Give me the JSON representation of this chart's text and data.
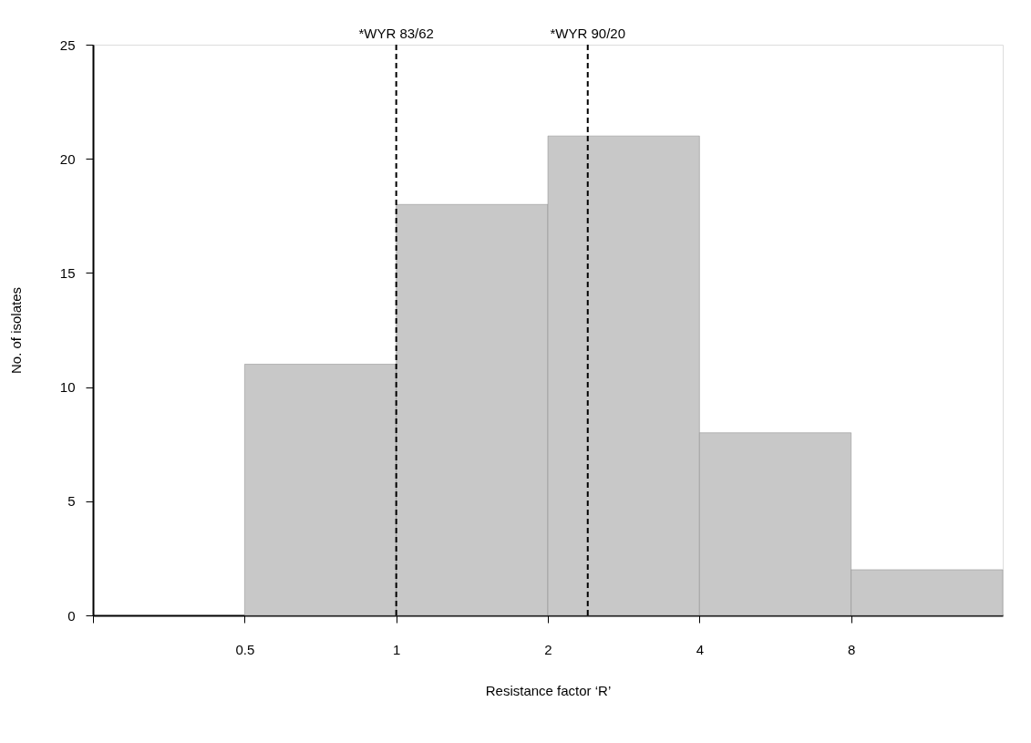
{
  "chart_data": {
    "type": "histogram",
    "xlabel": "Resistance factor ‘R’",
    "ylabel": "No. of isolates",
    "bins": [
      0.5,
      1,
      2,
      4,
      8,
      16
    ],
    "values": [
      11,
      18,
      21,
      8,
      2
    ],
    "color": "#c8c8c8",
    "log": "x",
    "xlim": [
      0.25,
      16
    ],
    "xticks": [
      {
        "value": 0.25,
        "label": null
      },
      0.5,
      1,
      2,
      4,
      8
    ],
    "ylim": [
      0,
      25
    ],
    "yticks": [
      0,
      5,
      10,
      15,
      20,
      25
    ],
    "ref_lines": [
      {
        "axis": "x",
        "value": 1,
        "label": "*WYR 83/62",
        "line_style": "dashed",
        "color": "#000000"
      },
      {
        "axis": "x",
        "value": 2.4,
        "label": "*WYR 90/20",
        "line_style": "dashed",
        "color": "#000000"
      }
    ],
    "grid": false
  }
}
